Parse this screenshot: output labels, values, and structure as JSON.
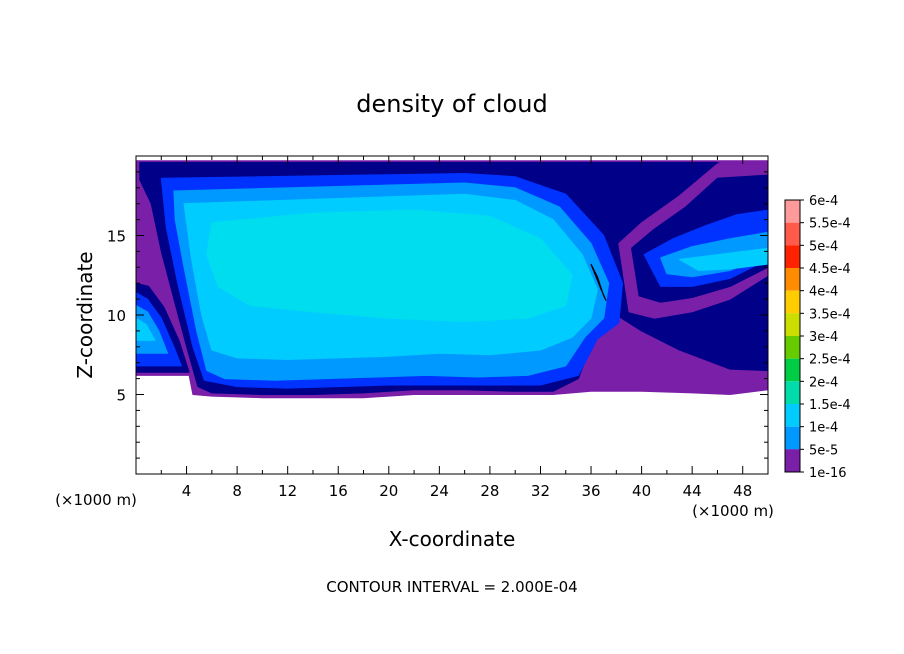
{
  "chart_data": {
    "type": "heatmap",
    "title": "density of cloud",
    "xlabel": "X-coordinate",
    "ylabel": "Z-coordinate",
    "x_unit_left": "(×1000 m)",
    "x_unit_right": "(×1000 m)",
    "xlim": [
      0,
      50
    ],
    "ylim": [
      0,
      20
    ],
    "x_ticks": [
      4,
      8,
      12,
      16,
      20,
      24,
      28,
      32,
      36,
      40,
      44,
      48
    ],
    "y_ticks": [
      5,
      10,
      15
    ],
    "x_tick_labels": [
      "4",
      "8",
      "12",
      "16",
      "20",
      "24",
      "28",
      "32",
      "36",
      "40",
      "44",
      "48"
    ],
    "y_tick_labels": [
      "5",
      "10",
      "15"
    ],
    "footer": "CONTOUR INTERVAL = 2.000E-04",
    "legend": {
      "placement": "right",
      "levels": [
        {
          "label": "6e-4",
          "color": "#ff9a9a"
        },
        {
          "label": "5.5e-4",
          "color": "#ff5a4a"
        },
        {
          "label": "5e-4",
          "color": "#ff2200"
        },
        {
          "label": "4.5e-4",
          "color": "#ff8c00"
        },
        {
          "label": "4e-4",
          "color": "#ffcc00"
        },
        {
          "label": "3.5e-4",
          "color": "#ccdd00"
        },
        {
          "label": "3e-4",
          "color": "#66cc00"
        },
        {
          "label": "2.5e-4",
          "color": "#00cc44"
        },
        {
          "label": "2e-4",
          "color": "#00ddaa"
        },
        {
          "label": "1.5e-4",
          "color": "#00ccff"
        },
        {
          "label": "1e-4",
          "color": "#0099ff"
        },
        {
          "label": "5e-5",
          "color": "#0033ff"
        },
        {
          "label": "1e-16",
          "color": "#000088"
        }
      ],
      "bottom_color": "#7a1fa8"
    },
    "regions": [
      {
        "name": "cloud-fringe",
        "color": "#7a1fa8",
        "points": [
          [
            0,
            19.7
          ],
          [
            50,
            19.7
          ],
          [
            50,
            5.3
          ],
          [
            47,
            5.0
          ],
          [
            44,
            5.1
          ],
          [
            40,
            5.2
          ],
          [
            36,
            5.2
          ],
          [
            33,
            5.0
          ],
          [
            30,
            5.0
          ],
          [
            26,
            5.0
          ],
          [
            22,
            5.0
          ],
          [
            18,
            4.8
          ],
          [
            14,
            4.8
          ],
          [
            10,
            4.8
          ],
          [
            6,
            4.9
          ],
          [
            4.5,
            5.0
          ],
          [
            4.2,
            6.2
          ],
          [
            0,
            6.2
          ]
        ]
      },
      {
        "name": "dark-blue-shell",
        "color": "#000088",
        "points": [
          [
            0.3,
            19.6
          ],
          [
            46,
            19.6
          ],
          [
            48,
            18.5
          ],
          [
            50,
            17.5
          ],
          [
            50,
            6.5
          ],
          [
            47,
            6.6
          ],
          [
            43,
            7.8
          ],
          [
            40,
            9.0
          ],
          [
            38,
            10
          ],
          [
            36.5,
            9.2
          ],
          [
            35,
            6.0
          ],
          [
            33,
            5.2
          ],
          [
            30,
            5.2
          ],
          [
            26,
            5.3
          ],
          [
            22,
            5.3
          ],
          [
            18,
            5.1
          ],
          [
            14,
            5.0
          ],
          [
            10,
            5.0
          ],
          [
            6,
            5.1
          ],
          [
            4.9,
            5.5
          ],
          [
            4.0,
            8
          ],
          [
            3.0,
            11
          ],
          [
            2.0,
            14
          ],
          [
            1.2,
            17
          ],
          [
            0.3,
            18.5
          ]
        ]
      },
      {
        "name": "blue-core",
        "color": "#0033ff",
        "points": [
          [
            2.0,
            18.6
          ],
          [
            26,
            18.9
          ],
          [
            30,
            18.7
          ],
          [
            34,
            17.6
          ],
          [
            37,
            15
          ],
          [
            38.5,
            12
          ],
          [
            38.2,
            9.5
          ],
          [
            36.5,
            8.5
          ],
          [
            35,
            6.2
          ],
          [
            32,
            5.6
          ],
          [
            28,
            5.6
          ],
          [
            24,
            5.6
          ],
          [
            20,
            5.6
          ],
          [
            16,
            5.5
          ],
          [
            12,
            5.4
          ],
          [
            8,
            5.5
          ],
          [
            5.4,
            5.9
          ],
          [
            4.5,
            8
          ],
          [
            3.3,
            12
          ],
          [
            2.4,
            15.5
          ]
        ]
      },
      {
        "name": "light-blue-core",
        "color": "#0099ff",
        "points": [
          [
            3.0,
            17.8
          ],
          [
            26,
            18.3
          ],
          [
            30,
            18.0
          ],
          [
            33.5,
            16.8
          ],
          [
            36,
            14.5
          ],
          [
            37.4,
            12
          ],
          [
            37.0,
            9.8
          ],
          [
            35.5,
            8.6
          ],
          [
            34,
            6.8
          ],
          [
            31,
            6.2
          ],
          [
            27,
            6.1
          ],
          [
            23,
            6.2
          ],
          [
            19,
            6.1
          ],
          [
            15,
            6.0
          ],
          [
            11,
            5.9
          ],
          [
            7,
            6.0
          ],
          [
            5.6,
            6.5
          ],
          [
            4.8,
            9
          ],
          [
            3.8,
            13
          ],
          [
            3.1,
            16
          ]
        ]
      },
      {
        "name": "sky-blue-core",
        "color": "#00ccff",
        "points": [
          [
            3.8,
            17.0
          ],
          [
            26,
            17.6
          ],
          [
            30,
            17.2
          ],
          [
            33,
            16.0
          ],
          [
            35.3,
            13.8
          ],
          [
            36.5,
            11.6
          ],
          [
            36.0,
            9.8
          ],
          [
            34.5,
            8.6
          ],
          [
            32,
            7.8
          ],
          [
            28,
            7.5
          ],
          [
            24,
            7.6
          ],
          [
            20,
            7.4
          ],
          [
            16,
            7.3
          ],
          [
            12,
            7.2
          ],
          [
            8,
            7.3
          ],
          [
            6.0,
            7.8
          ],
          [
            5.2,
            10
          ],
          [
            4.4,
            13.5
          ]
        ]
      },
      {
        "name": "cyan-core",
        "color": "#00ddee",
        "points": [
          [
            6,
            15.8
          ],
          [
            14,
            16.4
          ],
          [
            22,
            16.6
          ],
          [
            28,
            16.2
          ],
          [
            32,
            14.8
          ],
          [
            34.5,
            12.5
          ],
          [
            34.0,
            10.6
          ],
          [
            31,
            9.8
          ],
          [
            26,
            9.6
          ],
          [
            20,
            9.8
          ],
          [
            14,
            10.2
          ],
          [
            9,
            10.6
          ],
          [
            6.5,
            11.8
          ],
          [
            5.6,
            13.8
          ]
        ]
      },
      {
        "name": "right-lobe-fringe",
        "color": "#7a1fa8",
        "points": [
          [
            38.2,
            14.5
          ],
          [
            40,
            15.8
          ],
          [
            43,
            17.5
          ],
          [
            46,
            19.5
          ],
          [
            50,
            19.5
          ],
          [
            50,
            12.5
          ],
          [
            47,
            11
          ],
          [
            44,
            10.2
          ],
          [
            41,
            9.8
          ],
          [
            39,
            10.2
          ]
        ]
      },
      {
        "name": "right-lobe-dark",
        "color": "#000088",
        "points": [
          [
            39.2,
            14.2
          ],
          [
            41,
            15.4
          ],
          [
            43.5,
            16.8
          ],
          [
            46,
            18.6
          ],
          [
            50,
            18.8
          ],
          [
            50,
            13
          ],
          [
            47,
            11.8
          ],
          [
            44,
            11.1
          ],
          [
            41.5,
            10.8
          ],
          [
            39.8,
            11.2
          ]
        ]
      },
      {
        "name": "right-lobe-blue",
        "color": "#0033ff",
        "points": [
          [
            40.2,
            13.8
          ],
          [
            42.5,
            14.8
          ],
          [
            45,
            15.6
          ],
          [
            47.5,
            16.3
          ],
          [
            50,
            16.6
          ],
          [
            50,
            13.5
          ],
          [
            47,
            12.3
          ],
          [
            44,
            11.8
          ],
          [
            41.5,
            11.8
          ]
        ]
      },
      {
        "name": "right-lobe-lightblue",
        "color": "#0099ff",
        "points": [
          [
            41.5,
            13.6
          ],
          [
            44,
            14.3
          ],
          [
            47,
            14.8
          ],
          [
            50,
            15.2
          ],
          [
            50,
            13.8
          ],
          [
            47,
            12.8
          ],
          [
            44,
            12.4
          ],
          [
            42,
            12.6
          ]
        ]
      },
      {
        "name": "right-lobe-cyan",
        "color": "#00ccff",
        "points": [
          [
            43,
            13.5
          ],
          [
            46,
            13.8
          ],
          [
            50,
            14.2
          ],
          [
            50,
            13.2
          ],
          [
            47,
            12.9
          ],
          [
            44.5,
            12.8
          ]
        ]
      },
      {
        "name": "left-lobe-dark",
        "color": "#000088",
        "points": [
          [
            0,
            12.0
          ],
          [
            1.0,
            11.8
          ],
          [
            2.2,
            10.5
          ],
          [
            3.4,
            8.4
          ],
          [
            4.2,
            6.4
          ],
          [
            0,
            6.4
          ]
        ]
      },
      {
        "name": "left-lobe-blue",
        "color": "#0033ff",
        "points": [
          [
            0,
            11.4
          ],
          [
            0.9,
            11.0
          ],
          [
            2.0,
            9.8
          ],
          [
            3.0,
            8.0
          ],
          [
            3.6,
            6.8
          ],
          [
            0,
            6.8
          ]
        ]
      },
      {
        "name": "left-lobe-lightblue",
        "color": "#0099ff",
        "points": [
          [
            0,
            10.6
          ],
          [
            0.9,
            10.2
          ],
          [
            1.8,
            9.0
          ],
          [
            2.5,
            7.6
          ],
          [
            0,
            7.6
          ]
        ]
      },
      {
        "name": "left-lobe-cyan",
        "color": "#00ccff",
        "points": [
          [
            0,
            9.8
          ],
          [
            0.8,
            9.4
          ],
          [
            1.5,
            8.4
          ],
          [
            0,
            8.4
          ]
        ]
      }
    ],
    "contour_lines": [
      {
        "name": "thin-contour",
        "color": "#000000",
        "points": [
          [
            36.0,
            13.2
          ],
          [
            36.5,
            12.4
          ],
          [
            37.0,
            11.2
          ],
          [
            37.2,
            10.9
          ],
          [
            36.8,
            11.6
          ],
          [
            36.3,
            12.6
          ],
          [
            36.0,
            13.2
          ]
        ]
      }
    ]
  }
}
